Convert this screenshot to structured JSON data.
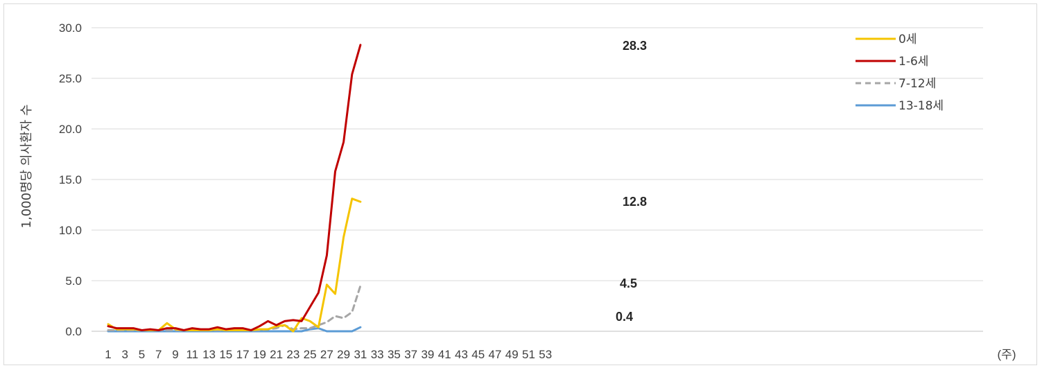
{
  "chart_data": {
    "type": "line",
    "title": "",
    "xlabel": "(주)",
    "ylabel": "1,000명당 의사환자 수",
    "ylim": [
      0,
      30
    ],
    "yticks": [
      "0.0",
      "5.0",
      "10.0",
      "15.0",
      "20.0",
      "25.0",
      "30.0"
    ],
    "xticks": [
      "1",
      "3",
      "5",
      "7",
      "9",
      "11",
      "13",
      "15",
      "17",
      "19",
      "21",
      "23",
      "25",
      "27",
      "29",
      "31",
      "33",
      "35",
      "37",
      "39",
      "41",
      "43",
      "45",
      "47",
      "49",
      "51",
      "53"
    ],
    "x": [
      1,
      2,
      3,
      4,
      5,
      6,
      7,
      8,
      9,
      10,
      11,
      12,
      13,
      14,
      15,
      16,
      17,
      18,
      19,
      20,
      21,
      22,
      23,
      24,
      25,
      26,
      27,
      28,
      29,
      30,
      31
    ],
    "grid": true,
    "legend_position": "top-right",
    "series": [
      {
        "name": "0세",
        "color": "#f5c400",
        "dash": false,
        "values": [
          0.7,
          0.2,
          0.2,
          0.2,
          0.1,
          0.1,
          0.1,
          0.8,
          0.2,
          0.1,
          0.1,
          0.1,
          0.1,
          0.2,
          0.1,
          0.1,
          0.1,
          0.1,
          0.2,
          0.2,
          0.5,
          0.6,
          0.0,
          1.3,
          1.0,
          0.4,
          4.6,
          3.7,
          9.3,
          13.1,
          12.8
        ]
      },
      {
        "name": "1-6세",
        "color": "#c00000",
        "dash": false,
        "values": [
          0.5,
          0.3,
          0.3,
          0.3,
          0.1,
          0.2,
          0.1,
          0.3,
          0.3,
          0.1,
          0.3,
          0.2,
          0.2,
          0.4,
          0.2,
          0.3,
          0.3,
          0.1,
          0.5,
          1.0,
          0.6,
          1.0,
          1.1,
          1.0,
          2.4,
          3.8,
          7.5,
          15.8,
          18.7,
          25.4,
          28.3
        ]
      },
      {
        "name": "7-12세",
        "color": "#a6a6a6",
        "dash": true,
        "values": [
          0.1,
          0.1,
          0.1,
          0.1,
          0.1,
          0.1,
          0.1,
          0.1,
          0.1,
          0.1,
          0.1,
          0.1,
          0.1,
          0.1,
          0.1,
          0.1,
          0.1,
          0.1,
          0.1,
          0.2,
          0.3,
          0.6,
          0.2,
          0.3,
          0.3,
          0.6,
          0.9,
          1.5,
          1.3,
          1.9,
          4.5
        ]
      },
      {
        "name": "13-18세",
        "color": "#5b9bd5",
        "dash": false,
        "values": [
          0.0,
          0.0,
          0.0,
          0.0,
          0.0,
          0.0,
          0.0,
          0.0,
          0.0,
          0.0,
          0.0,
          0.0,
          0.0,
          0.0,
          0.0,
          0.0,
          0.0,
          0.0,
          0.0,
          0.0,
          0.0,
          0.0,
          0.0,
          0.0,
          0.2,
          0.3,
          0.0,
          0.0,
          0.0,
          0.0,
          0.4
        ]
      }
    ],
    "end_labels": [
      "12.8",
      "28.3",
      "4.5",
      "0.4"
    ]
  }
}
